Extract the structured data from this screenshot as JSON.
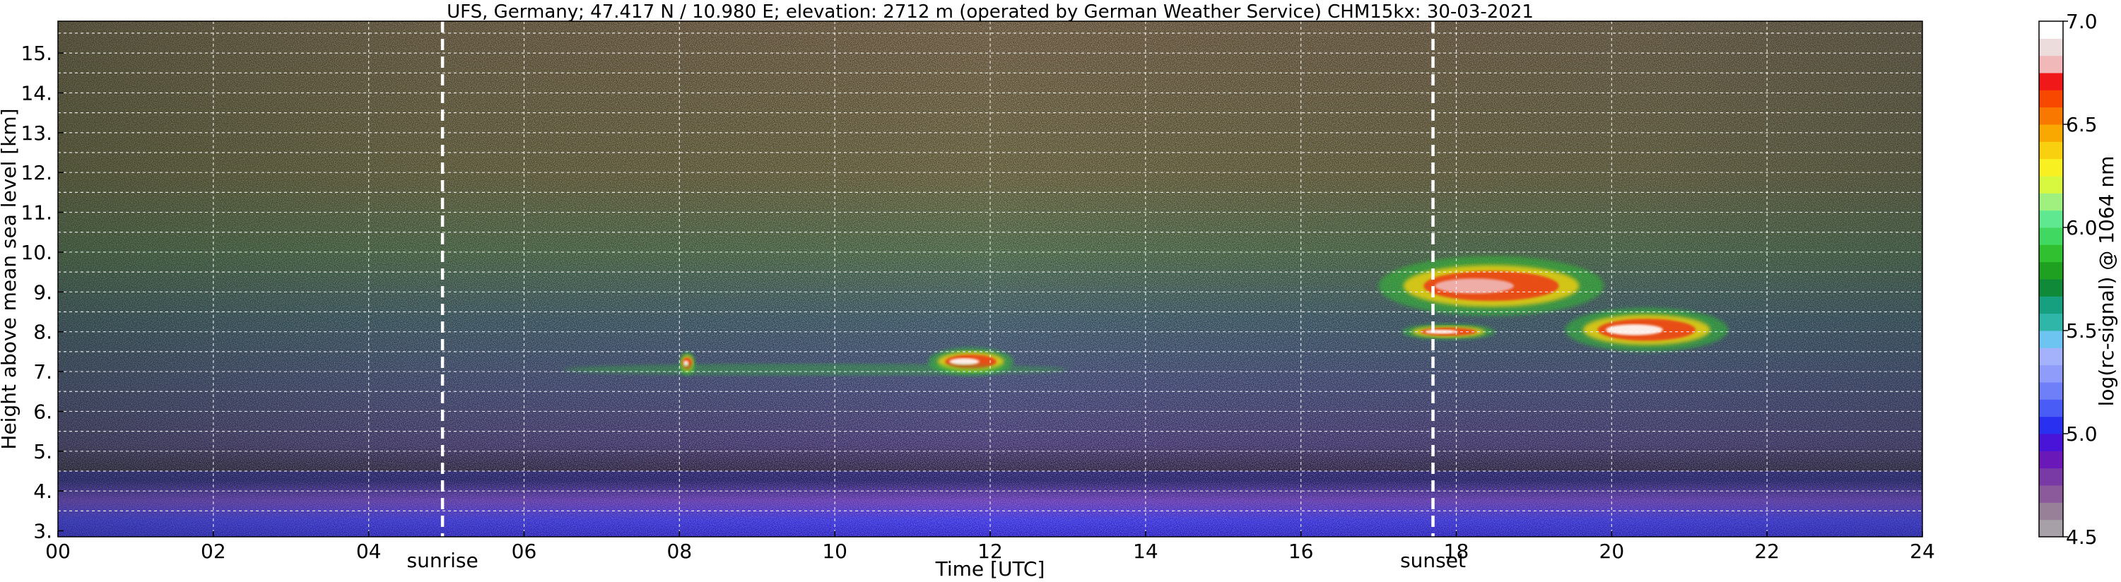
{
  "chart_data": {
    "type": "heatmap",
    "title": "UFS, Germany; 47.417 N / 10.980 E; elevation: 2712 m  (operated by German Weather Service)    CHM15kx: 30-03-2021",
    "xlabel": "Time [UTC]",
    "ylabel": "Height above mean sea level [km]",
    "xlim": [
      0,
      24
    ],
    "ylim": [
      2.85,
      15.8
    ],
    "x_ticks": [
      0,
      2,
      4,
      6,
      8,
      10,
      12,
      14,
      16,
      18,
      20,
      22,
      24
    ],
    "x_tick_labels": [
      "00",
      "02",
      "04",
      "06",
      "08",
      "10",
      "12",
      "14",
      "16",
      "18",
      "20",
      "22",
      "24"
    ],
    "y_ticks": [
      3,
      4,
      5,
      6,
      7,
      8,
      9,
      10,
      11,
      12,
      13,
      14,
      15
    ],
    "y_tick_labels": [
      "3.",
      "4.",
      "5.",
      "6.",
      "7.",
      "8.",
      "9.",
      "10.",
      "11.",
      "12.",
      "13.",
      "14.",
      "15."
    ],
    "grid": true,
    "annotations": [
      {
        "label": "sunrise",
        "x": 4.95
      },
      {
        "label": "sunset",
        "x": 17.7
      }
    ],
    "colorbar": {
      "label": "log(rc-signal) @ 1064 nm",
      "range": [
        4.5,
        7.0
      ],
      "ticks": [
        4.5,
        5.0,
        5.5,
        6.0,
        6.5,
        7.0
      ],
      "tick_labels": [
        "4.5",
        "5.0",
        "5.5",
        "6.0",
        "6.5",
        "7.0"
      ],
      "colors": [
        "#a8a0a8",
        "#988098",
        "#8a5a9a",
        "#7a3aa6",
        "#6a18b8",
        "#4a14d8",
        "#2a30f0",
        "#4a5cf6",
        "#6f7ff8",
        "#8f9cfa",
        "#a4b2fc",
        "#6ec4f0",
        "#30b6a8",
        "#16a080",
        "#108a38",
        "#20a020",
        "#30c030",
        "#40d860",
        "#60e890",
        "#a0f080",
        "#d8f840",
        "#f8f020",
        "#f8d010",
        "#f8a800",
        "#f87800",
        "#f84800",
        "#f01818",
        "#f0b8b8",
        "#ecdcdc",
        "#ffffff"
      ]
    },
    "features": [
      {
        "kind": "cloud",
        "x_range": [
          17.0,
          19.9
        ],
        "height_range": [
          8.4,
          9.9
        ],
        "max_signal": 6.8
      },
      {
        "kind": "cloud",
        "x_range": [
          17.3,
          18.5
        ],
        "height_range": [
          7.8,
          8.2
        ],
        "max_signal": 7.0
      },
      {
        "kind": "cloud",
        "x_range": [
          19.4,
          21.5
        ],
        "height_range": [
          7.5,
          8.6
        ],
        "max_signal": 7.0
      },
      {
        "kind": "cloud",
        "x_range": [
          11.2,
          12.3
        ],
        "height_range": [
          6.9,
          7.6
        ],
        "max_signal": 7.0
      },
      {
        "kind": "cloud",
        "x_range": [
          8.0,
          8.2
        ],
        "height_range": [
          6.9,
          7.5
        ],
        "max_signal": 7.0
      },
      {
        "kind": "aerosol-layer",
        "x_range": [
          6.5,
          13.0
        ],
        "height_range": [
          6.9,
          7.2
        ],
        "max_signal": 5.9
      },
      {
        "kind": "boundary-layer",
        "x_range": [
          0,
          24
        ],
        "height_range": [
          2.85,
          4.5
        ],
        "max_signal": 5.0
      }
    ]
  }
}
